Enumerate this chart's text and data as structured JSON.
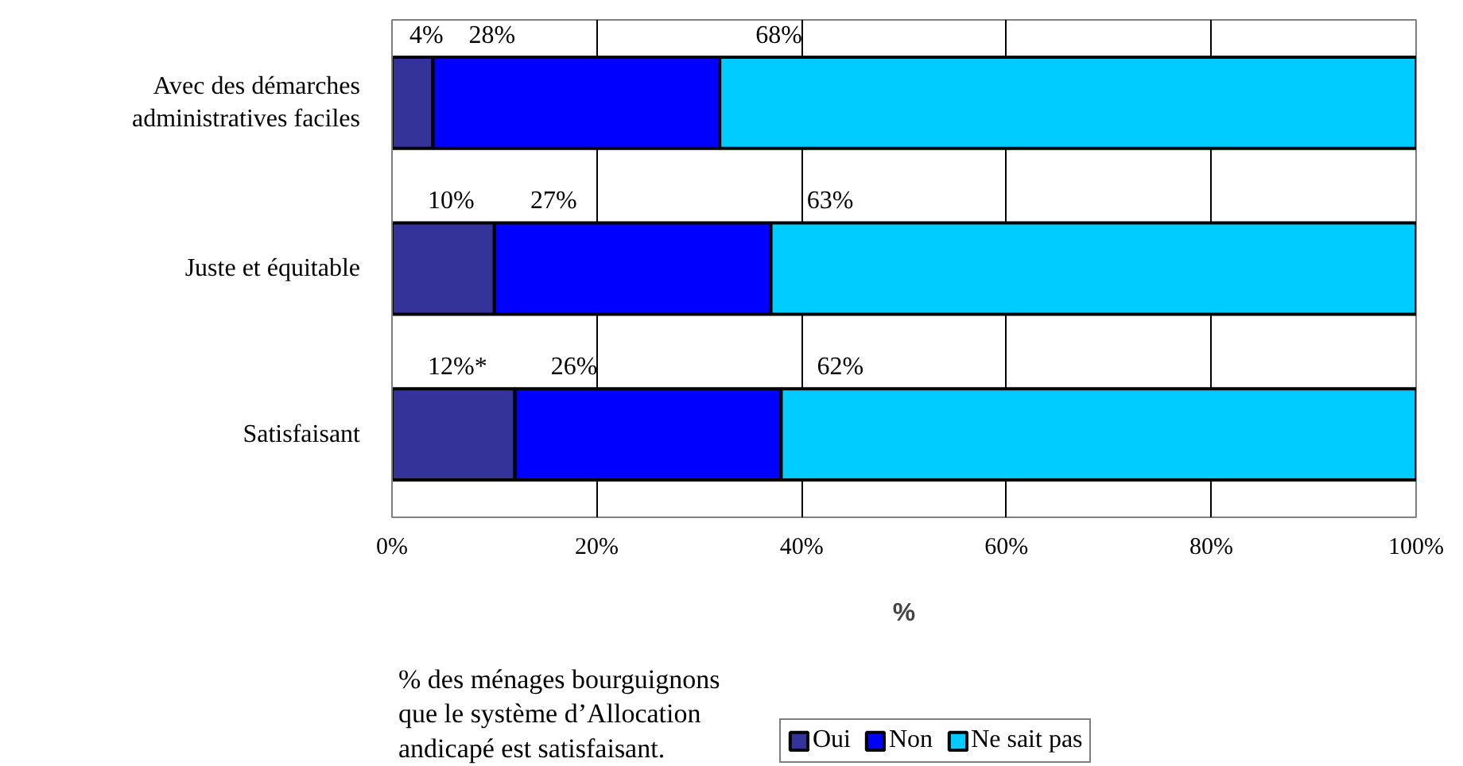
{
  "chart_data": {
    "type": "bar",
    "orientation": "horizontal",
    "stacked": true,
    "categories": [
      "Avec des démarches administratives faciles",
      "Juste et équitable",
      "Satisfaisant"
    ],
    "series": [
      {
        "name": "Oui",
        "color": "#333399",
        "values": [
          4,
          10,
          12
        ],
        "value_labels": [
          "4%",
          "10%",
          "12%*"
        ]
      },
      {
        "name": "Non",
        "color": "#0000ff",
        "values": [
          28,
          27,
          26
        ],
        "value_labels": [
          "28%",
          "27%",
          "26%"
        ]
      },
      {
        "name": "Ne sait pas",
        "color": "#00ccff",
        "values": [
          68,
          63,
          62
        ],
        "value_labels": [
          "68%",
          "63%",
          "62%"
        ]
      }
    ],
    "xlim": [
      0,
      100
    ],
    "xticks": [
      {
        "value": 0,
        "label": "0%"
      },
      {
        "value": 20,
        "label": "20%"
      },
      {
        "value": 40,
        "label": "40%"
      },
      {
        "value": 60,
        "label": "60%"
      },
      {
        "value": 80,
        "label": "80%"
      },
      {
        "value": 100,
        "label": "100%"
      }
    ],
    "xlabel": "%",
    "grid": "x",
    "legend": "bottom",
    "annotations": [
      "% des ménages bourguignons\nque le système d’Allocation\nandicapé est satisfaisant."
    ]
  }
}
